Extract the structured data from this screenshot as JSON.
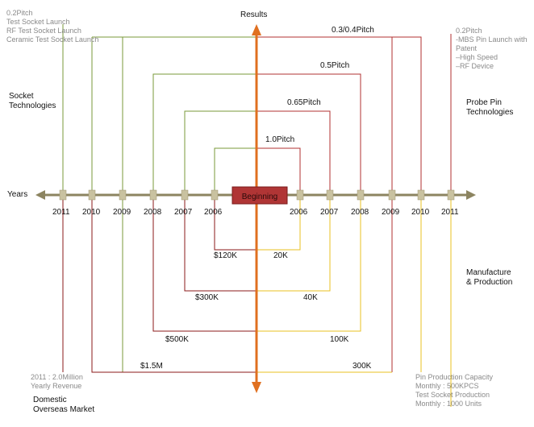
{
  "title": "Results",
  "center_label": "Beginning",
  "axis_label": "Years",
  "left_years": [
    "2011",
    "2010",
    "2009",
    "2008",
    "2007",
    "2006"
  ],
  "right_years": [
    "2006",
    "2007",
    "2008",
    "2009",
    "2010",
    "2011"
  ],
  "pitch_labels": [
    "1.0Pitch",
    "0.65Pitch",
    "0.5Pitch",
    "0.3/0.4Pitch"
  ],
  "revenue_labels": [
    "$120K",
    "$300K",
    "$500K",
    "$1.5M"
  ],
  "unit_labels": [
    "20K",
    "40K",
    "100K",
    "300K"
  ],
  "socket_milestones": [
    "0.2Pitch",
    "Test Socket Launch",
    "RF Test Socket Launch",
    "Ceramic Test Socket Launch"
  ],
  "probe_milestones": [
    "0.2Pitch",
    "-MBS Pin Launch  with",
    "Patent",
    "–High Speed",
    "–RF Device"
  ],
  "quadrants": {
    "socket": [
      "Socket",
      "Technologies"
    ],
    "probe": [
      "Probe Pin",
      "Technologies"
    ],
    "manufacture": [
      "Manufacture",
      "& Production"
    ],
    "market": [
      "Domestic",
      "Overseas Market"
    ]
  },
  "revenue_note": [
    "2011 : 2.0Million",
    "Yearly Revenue"
  ],
  "production_note": [
    "Pin Production Capacity",
    "Monthly : 500KPCS",
    "Test Socket Production",
    "Monthly : 1000 Units"
  ],
  "colors": {
    "green": "#7a9a3a",
    "red": "#b03030",
    "yellow": "#e8c020",
    "darkred": "#8b1a1a",
    "orange": "#e07020",
    "axis": "#8c8460",
    "gray_text": "#8a8a8a"
  }
}
